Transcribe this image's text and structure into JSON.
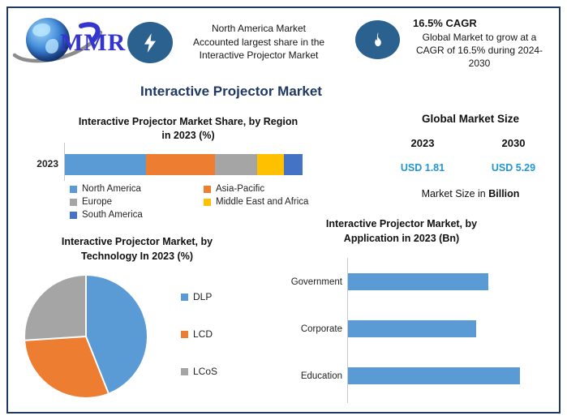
{
  "brand": {
    "name": "MMR"
  },
  "colors": {
    "accent_navy": "#1F3864",
    "icon_blue": "#2A618F",
    "value_blue": "#2196D3",
    "chart_blue": "#5B9BD5",
    "chart_orange": "#ED7D31",
    "chart_gray": "#A5A5A5",
    "chart_yellow": "#FFC000",
    "chart_darkblue": "#4472C4"
  },
  "header": {
    "highlight_share": {
      "icon": "lightning-icon",
      "lines": [
        "North America Market",
        "Accounted largest share in the",
        "Interactive Projector Market"
      ]
    },
    "highlight_cagr": {
      "icon": "flame-icon",
      "title": "16.5% CAGR",
      "lines": [
        "Global Market to grow at a",
        "CAGR of 16.5% during 2024-",
        "2030"
      ]
    }
  },
  "page_title": "Interactive Projector Market",
  "market_size": {
    "title": "Global Market Size",
    "year1": "2023",
    "year2": "2030",
    "value1": "USD 1.81",
    "value2": "USD 5.29",
    "note_prefix": "Market Size in ",
    "note_bold": "Billion"
  },
  "chart_data": [
    {
      "type": "bar",
      "variant": "stacked-horizontal",
      "title": "Interactive Projector Market Share, by Region in 2023 (%)",
      "title_lines": [
        "Interactive Projector Market Share, by Region",
        "in 2023 (%)"
      ],
      "categories": [
        "2023"
      ],
      "series": [
        {
          "name": "North America",
          "values": [
            34
          ],
          "color": "#5B9BD5"
        },
        {
          "name": "Asia-Pacific",
          "values": [
            29
          ],
          "color": "#ED7D31"
        },
        {
          "name": "Europe",
          "values": [
            18
          ],
          "color": "#A5A5A5"
        },
        {
          "name": "Middle East and Africa",
          "values": [
            11
          ],
          "color": "#FFC000"
        },
        {
          "name": "South America",
          "values": [
            8
          ],
          "color": "#4472C4"
        }
      ],
      "xlim": [
        0,
        100
      ],
      "legend_position": "bottom",
      "grid": false
    },
    {
      "type": "pie",
      "title": "Interactive Projector Market, by Technology In 2023 (%)",
      "title_lines": [
        "Interactive Projector Market, by",
        "Technology In 2023 (%)"
      ],
      "labels": [
        "DLP",
        "LCD",
        "LCoS"
      ],
      "values": [
        44,
        30,
        26
      ],
      "colors": [
        "#5B9BD5",
        "#ED7D31",
        "#A5A5A5"
      ],
      "legend_position": "right",
      "start_angle_deg": 0
    },
    {
      "type": "bar",
      "variant": "horizontal",
      "title": "Interactive Projector Market, by Application in 2023 (Bn)",
      "title_lines": [
        "Interactive Projector Market, by",
        "Application in 2023 (Bn)"
      ],
      "categories": [
        "Government",
        "Corporate",
        "Education"
      ],
      "values": [
        0.58,
        0.53,
        0.71
      ],
      "color": "#5B9BD5",
      "xlim": [
        0,
        0.75
      ],
      "grid": false
    }
  ]
}
